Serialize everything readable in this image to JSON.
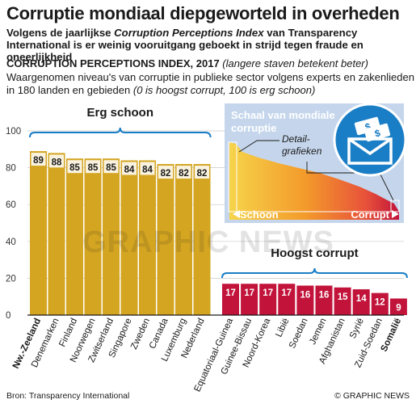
{
  "title": "Corruptie mondiaal diepgeworteld in overheden",
  "subtitle": {
    "prefix": "Volgens de jaarlijkse ",
    "index_name": "Corruption Perceptions Index",
    "suffix": " van Transparency International is er weinig vooruitgang geboekt in strijd tegen fraude en oneerlijkheid"
  },
  "cpi_heading": {
    "name": "CORRUPTION PERCEPTIONS INDEX, 2017",
    "note": "(langere staven betekent beter)"
  },
  "description": {
    "text": "Waargenomen niveau's van corruptie in publieke sector volgens experts en zakenlieden in 180 landen en gebieden ",
    "italic": "(0 is hoogst corrupt, 100 is erg schoon)"
  },
  "group_labels": {
    "clean": "Erg schoon",
    "corrupt": "Hoogst corrupt"
  },
  "inset": {
    "title": "Schaal van mondiale corruptie",
    "detail_label": "Detail-grafieken",
    "left_label": "Schoon",
    "right_label": "Corrupt"
  },
  "watermark": "GRAPHIC NEWS",
  "footer": {
    "source": "Bron: Transparency International",
    "copyright": "© GRAPHIC NEWS"
  },
  "colors": {
    "clean_bar": "#d4a521",
    "corrupt_bar": "#c2133a",
    "panel": "#c5d6ec",
    "accent": "#1a7ec6"
  },
  "icons": {
    "inset_icon": "money-envelope-icon"
  },
  "chart_data": {
    "type": "bar",
    "ylim": [
      0,
      100
    ],
    "yticks": [
      0,
      20,
      40,
      60,
      80,
      100
    ],
    "categories": [
      "Nw.-Zeeland",
      "Denemarken",
      "Finland",
      "Noorwegen",
      "Zwitserland",
      "Singapore",
      "Zweden",
      "Canada",
      "Luxemburg",
      "Nederland",
      "Equatoriaal-Guinea",
      "Guinee-Bissau",
      "Noord-Korea",
      "Libië",
      "Soedan",
      "Jemen",
      "Afghanistan",
      "Syrië",
      "Zuid-Soedan",
      "Somalië"
    ],
    "values": [
      89,
      88,
      85,
      85,
      85,
      84,
      84,
      82,
      82,
      82,
      17,
      17,
      17,
      17,
      16,
      16,
      15,
      14,
      12,
      9
    ],
    "highlighted": [
      "Nw.-Zeeland",
      "Somalië"
    ]
  }
}
